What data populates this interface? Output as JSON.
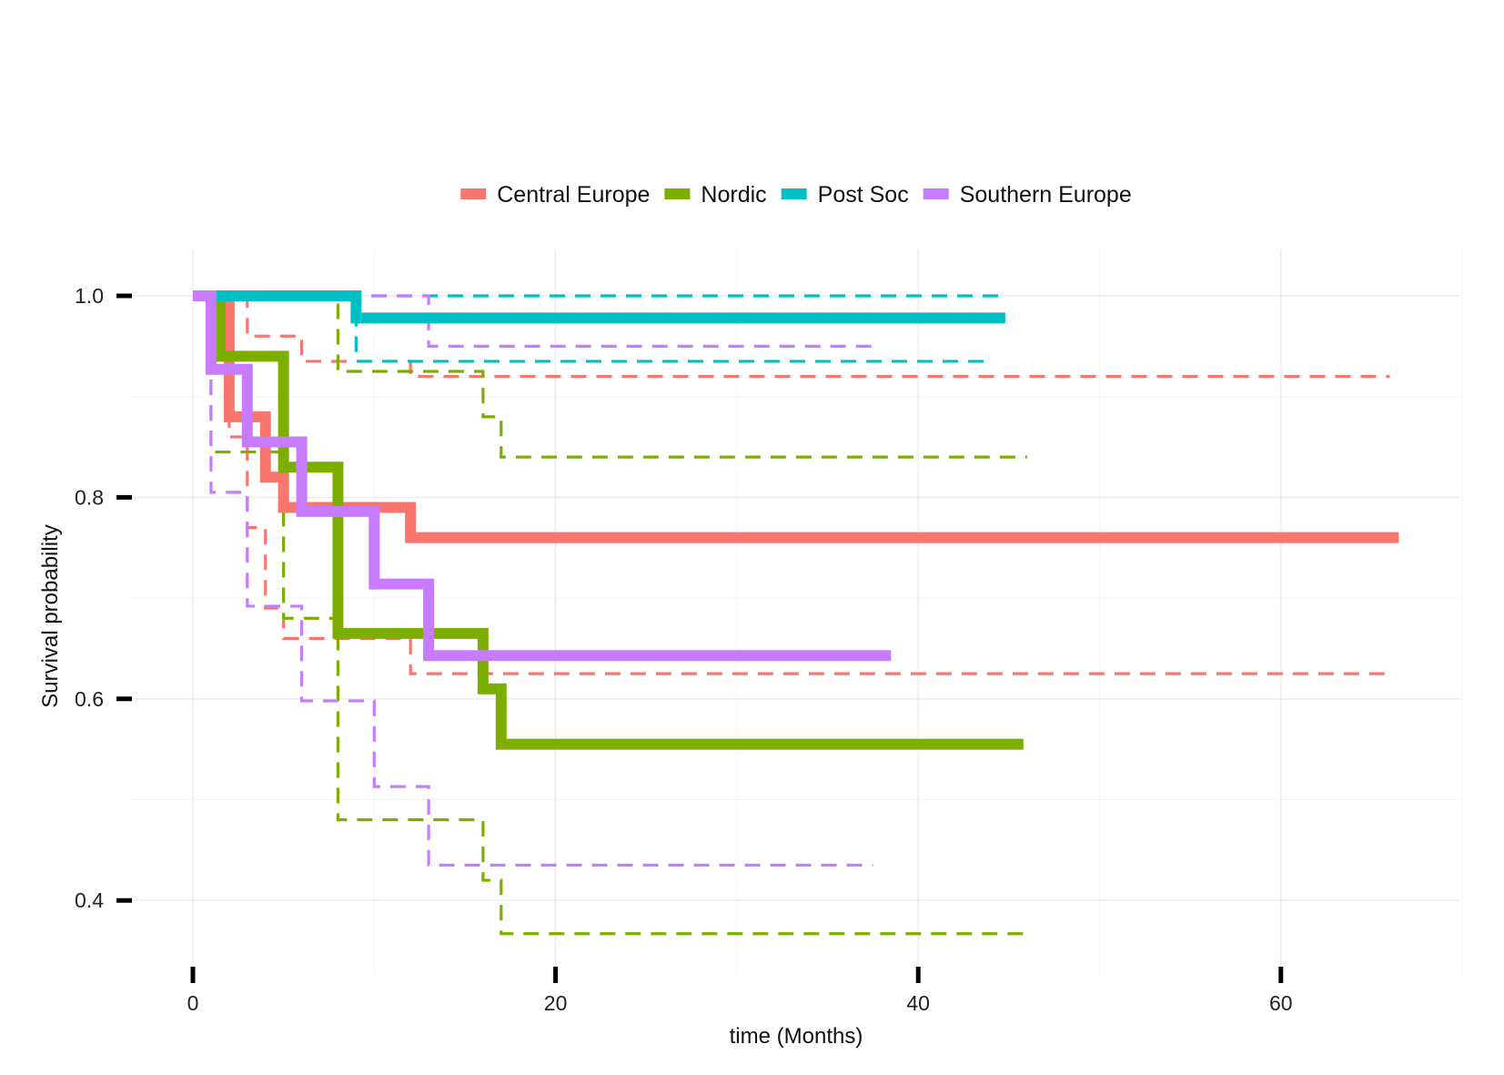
{
  "chart_data": {
    "type": "line",
    "subtype": "kaplan-meier step curves with dashed confidence bands",
    "xlabel": "time (Months)",
    "ylabel": "Survival probability",
    "xlim": [
      0,
      70
    ],
    "ylim": [
      0.34,
      1.03
    ],
    "xticks": [
      0,
      20,
      40,
      60
    ],
    "yticks": [
      0.4,
      0.6,
      0.8,
      1.0
    ],
    "ytick_labels": [
      "0.4",
      "0.6",
      "0.8",
      "1.0"
    ],
    "grid": true,
    "legend_position": "top",
    "series": [
      {
        "name": "Central Europe",
        "color": "#F8766D",
        "x": [
          0,
          2,
          4,
          5,
          12,
          66.5
        ],
        "y": [
          1.0,
          0.88,
          0.82,
          0.79,
          0.76,
          0.76
        ],
        "lower": {
          "x": [
            0,
            2,
            3,
            4,
            5,
            12,
            66
          ],
          "y": [
            1.0,
            0.86,
            0.77,
            0.69,
            0.66,
            0.625,
            0.625
          ]
        },
        "upper": {
          "x": [
            0,
            3,
            6,
            12,
            66
          ],
          "y": [
            1.0,
            0.96,
            0.935,
            0.92,
            0.92
          ]
        }
      },
      {
        "name": "Nordic",
        "color": "#7CAE00",
        "x": [
          0,
          1.5,
          5,
          8,
          16,
          17,
          45.8
        ],
        "y": [
          1.0,
          0.94,
          0.83,
          0.665,
          0.61,
          0.555,
          0.555
        ],
        "lower": {
          "x": [
            0,
            1,
            5,
            8,
            16,
            17,
            46
          ],
          "y": [
            1.0,
            0.845,
            0.68,
            0.48,
            0.42,
            0.367,
            0.367
          ]
        },
        "upper": {
          "x": [
            0,
            8,
            16,
            17,
            46
          ],
          "y": [
            1.0,
            0.925,
            0.88,
            0.84,
            0.84
          ]
        }
      },
      {
        "name": "Post Soc",
        "color": "#00BFC4",
        "x": [
          0,
          9,
          44.8
        ],
        "y": [
          1.0,
          0.978,
          0.978
        ],
        "lower": {
          "x": [
            0,
            9,
            44
          ],
          "y": [
            1.0,
            0.935,
            0.935
          ]
        },
        "upper": {
          "x": [
            0,
            44.8
          ],
          "y": [
            1.0,
            1.0
          ]
        }
      },
      {
        "name": "Southern Europe",
        "color": "#C77CFF",
        "x": [
          0,
          1,
          3,
          6,
          10,
          13,
          38.5
        ],
        "y": [
          1.0,
          0.927,
          0.855,
          0.786,
          0.714,
          0.643,
          0.643
        ],
        "lower": {
          "x": [
            0,
            1,
            3,
            6,
            10,
            13,
            37.5
          ],
          "y": [
            1.0,
            0.805,
            0.692,
            0.598,
            0.513,
            0.435,
            0.435
          ]
        },
        "upper": {
          "x": [
            0,
            13,
            37.5
          ],
          "y": [
            1.0,
            0.95,
            0.95
          ]
        }
      }
    ]
  }
}
